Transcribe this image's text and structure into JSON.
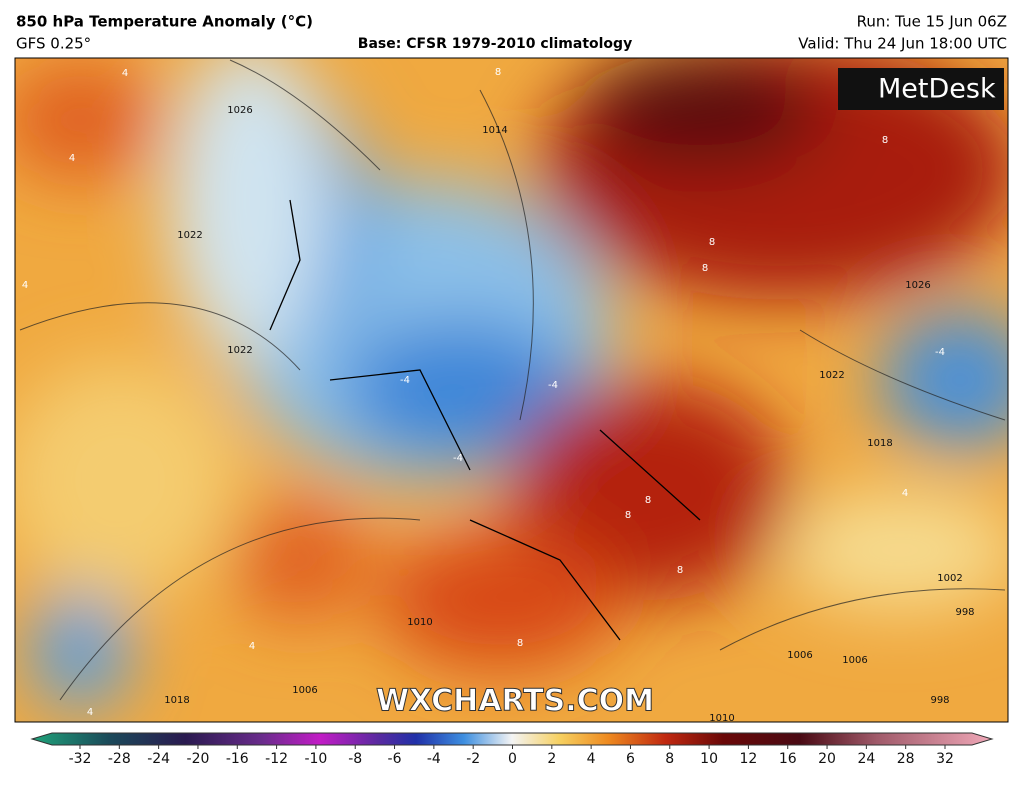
{
  "header": {
    "title": "850 hPa Temperature Anomaly (°C)",
    "model": "GFS 0.25°",
    "base": "Base: CFSR 1979-2010 climatology",
    "run": "Run: Tue 15 Jun 06Z",
    "valid": "Valid: Thu 24 Jun 18:00 UTC"
  },
  "logo": "MetDesk",
  "watermark": "WXCHARTS.COM",
  "isobar_labels": [
    "1026",
    "1022",
    "1022",
    "1014",
    "1026",
    "1022",
    "1018",
    "1018",
    "1010",
    "1006",
    "1006",
    "1002",
    "998",
    "998",
    "1010",
    "1006"
  ],
  "anomaly_labels": [
    "4",
    "4",
    "4",
    "8",
    "8",
    "8",
    "8",
    "-4",
    "-4",
    "-4",
    "8",
    "8",
    "8",
    "4",
    "4",
    "-4",
    "4",
    "8"
  ],
  "colorbar": {
    "ticks": [
      -32,
      -28,
      -24,
      -20,
      -16,
      -12,
      -10,
      -8,
      -6,
      -4,
      -2,
      0,
      2,
      4,
      6,
      8,
      10,
      12,
      16,
      20,
      24,
      28,
      32
    ]
  }
}
